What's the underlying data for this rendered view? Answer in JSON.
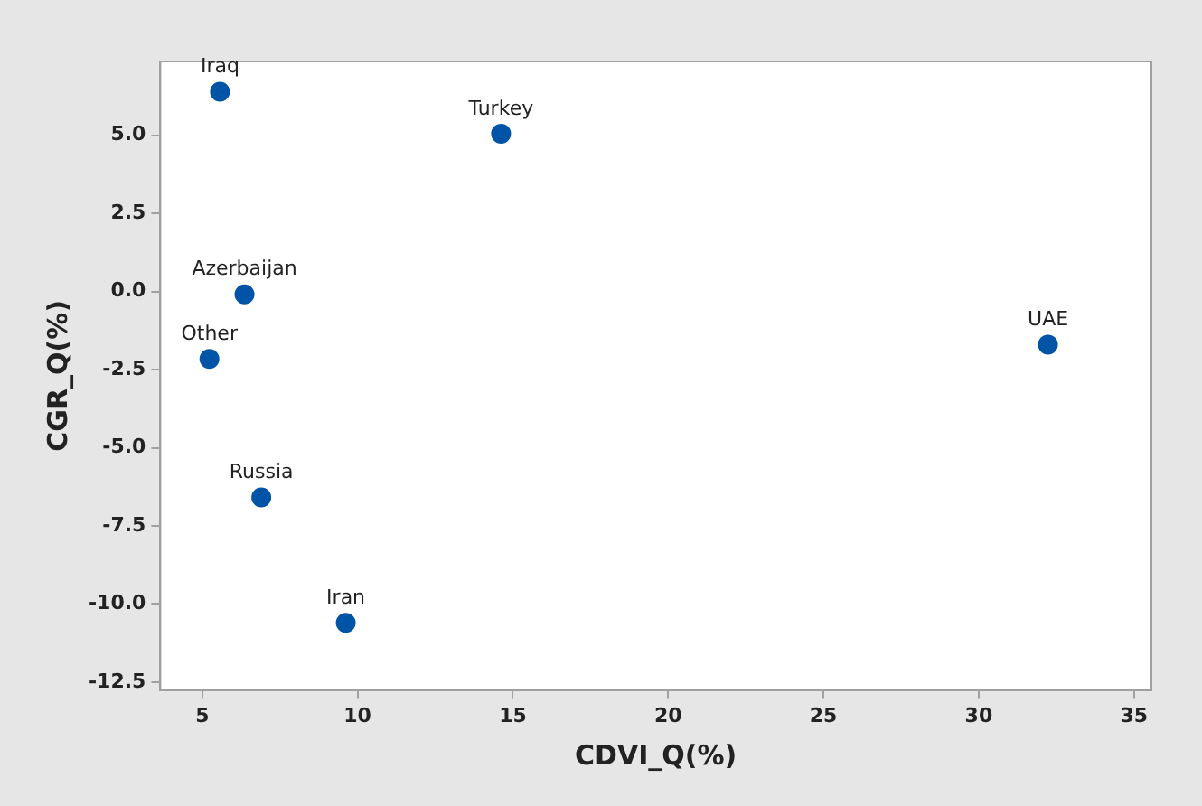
{
  "chart_data": {
    "type": "scatter",
    "xlabel": "CDVI_Q(%)",
    "ylabel": "CGR_Q(%)",
    "x": [
      5.57,
      14.62,
      6.36,
      5.23,
      32.23,
      6.9,
      9.62
    ],
    "series": [
      {
        "color": "#0054a6",
        "values": [
          6.39,
          5.05,
          -0.09,
          -2.16,
          -1.7,
          -6.59,
          -10.6
        ]
      }
    ],
    "xlim": [
      3.65,
      35.56
    ],
    "xticks": [
      5,
      10,
      15,
      20,
      25,
      30,
      35
    ],
    "ylim": [
      -12.75,
      7.36
    ],
    "yticks": [
      {
        "value": -12.5,
        "label": "-12.5"
      },
      {
        "value": -10,
        "label": "-10.0"
      },
      {
        "value": -7.5,
        "label": "-7.5"
      },
      {
        "value": -5,
        "label": "-5.0"
      },
      {
        "value": -2.5,
        "label": "-2.5"
      },
      {
        "value": 0,
        "label": "0.0"
      },
      {
        "value": 2.5,
        "label": "2.5"
      },
      {
        "value": 5,
        "label": "5.0"
      }
    ],
    "grid": false,
    "legend": false,
    "marker": "circle",
    "annotations": [
      {
        "text": "Iraq",
        "x": 5.57,
        "y": 6.39
      },
      {
        "text": "Turkey",
        "x": 14.62,
        "y": 5.05
      },
      {
        "text": "Azerbaijan",
        "x": 6.36,
        "y": -0.09
      },
      {
        "text": "Other",
        "x": 5.23,
        "y": -2.16
      },
      {
        "text": "UAE",
        "x": 32.23,
        "y": -1.7
      },
      {
        "text": "Russia",
        "x": 6.9,
        "y": -6.59
      },
      {
        "text": "Iran",
        "x": 9.62,
        "y": -10.6
      }
    ]
  }
}
